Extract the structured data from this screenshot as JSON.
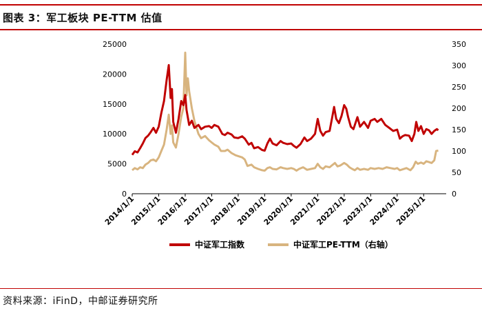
{
  "title": "图表 3：军工板块 PE-TTM 估值",
  "source": "资料来源：iFinD，中邮证券研究所",
  "colors": {
    "accent": "#c00000",
    "series1": "#c00000",
    "series2": "#d8b47f"
  },
  "chart_data": {
    "type": "line",
    "x_tick_labels": [
      "2014/1/1",
      "2015/1/1",
      "2016/1/1",
      "2017/1/1",
      "2018/1/1",
      "2019/1/1",
      "2020/1/1",
      "2021/1/1",
      "2022/1/1",
      "2023/1/1",
      "2024/1/1",
      "2025/1/1"
    ],
    "x_range": [
      2014.0,
      2025.85
    ],
    "y_left": {
      "ticks": [
        "0",
        "5000",
        "10000",
        "15000",
        "20000",
        "25000"
      ],
      "range": [
        0,
        25000
      ]
    },
    "y_right": {
      "ticks": [
        "0",
        "50",
        "100",
        "150",
        "200",
        "250",
        "300",
        "350"
      ],
      "range": [
        0,
        350
      ]
    },
    "legend_position": "bottom",
    "series": [
      {
        "name": "中证军工指数",
        "axis": "left",
        "points": [
          [
            2014.0,
            6500
          ],
          [
            2014.1,
            7100
          ],
          [
            2014.2,
            6900
          ],
          [
            2014.3,
            7600
          ],
          [
            2014.4,
            8400
          ],
          [
            2014.5,
            9300
          ],
          [
            2014.6,
            9700
          ],
          [
            2014.7,
            10300
          ],
          [
            2014.8,
            11000
          ],
          [
            2014.9,
            10200
          ],
          [
            2015.0,
            11200
          ],
          [
            2015.1,
            13500
          ],
          [
            2015.2,
            15500
          ],
          [
            2015.3,
            19000
          ],
          [
            2015.38,
            21500
          ],
          [
            2015.45,
            16000
          ],
          [
            2015.5,
            17500
          ],
          [
            2015.55,
            12000
          ],
          [
            2015.65,
            10200
          ],
          [
            2015.75,
            12500
          ],
          [
            2015.85,
            15500
          ],
          [
            2015.93,
            14800
          ],
          [
            2016.0,
            16500
          ],
          [
            2016.05,
            14000
          ],
          [
            2016.15,
            11500
          ],
          [
            2016.25,
            12200
          ],
          [
            2016.35,
            11000
          ],
          [
            2016.5,
            11500
          ],
          [
            2016.6,
            10800
          ],
          [
            2016.75,
            11200
          ],
          [
            2016.9,
            11300
          ],
          [
            2017.0,
            11000
          ],
          [
            2017.1,
            11500
          ],
          [
            2017.25,
            11200
          ],
          [
            2017.4,
            10000
          ],
          [
            2017.5,
            9800
          ],
          [
            2017.6,
            10200
          ],
          [
            2017.75,
            9900
          ],
          [
            2017.85,
            9400
          ],
          [
            2018.0,
            9300
          ],
          [
            2018.15,
            9600
          ],
          [
            2018.25,
            9200
          ],
          [
            2018.4,
            8200
          ],
          [
            2018.5,
            8500
          ],
          [
            2018.6,
            7600
          ],
          [
            2018.75,
            7800
          ],
          [
            2018.9,
            7300
          ],
          [
            2019.0,
            7200
          ],
          [
            2019.1,
            8400
          ],
          [
            2019.2,
            9200
          ],
          [
            2019.3,
            8400
          ],
          [
            2019.45,
            8100
          ],
          [
            2019.6,
            8800
          ],
          [
            2019.7,
            8500
          ],
          [
            2019.85,
            8300
          ],
          [
            2020.0,
            8400
          ],
          [
            2020.1,
            8000
          ],
          [
            2020.2,
            7700
          ],
          [
            2020.35,
            8300
          ],
          [
            2020.5,
            9400
          ],
          [
            2020.6,
            8800
          ],
          [
            2020.75,
            9200
          ],
          [
            2020.9,
            10000
          ],
          [
            2021.0,
            12500
          ],
          [
            2021.1,
            10500
          ],
          [
            2021.2,
            9700
          ],
          [
            2021.3,
            10300
          ],
          [
            2021.45,
            10500
          ],
          [
            2021.55,
            12800
          ],
          [
            2021.62,
            14500
          ],
          [
            2021.7,
            12500
          ],
          [
            2021.8,
            11800
          ],
          [
            2021.9,
            13000
          ],
          [
            2022.0,
            14800
          ],
          [
            2022.08,
            14200
          ],
          [
            2022.15,
            12800
          ],
          [
            2022.25,
            11200
          ],
          [
            2022.35,
            10800
          ],
          [
            2022.5,
            12800
          ],
          [
            2022.6,
            11200
          ],
          [
            2022.75,
            12000
          ],
          [
            2022.9,
            11000
          ],
          [
            2023.0,
            12200
          ],
          [
            2023.15,
            12500
          ],
          [
            2023.25,
            12000
          ],
          [
            2023.4,
            12500
          ],
          [
            2023.55,
            11500
          ],
          [
            2023.7,
            11000
          ],
          [
            2023.85,
            10500
          ],
          [
            2024.0,
            10700
          ],
          [
            2024.1,
            9200
          ],
          [
            2024.2,
            9600
          ],
          [
            2024.3,
            9800
          ],
          [
            2024.45,
            9700
          ],
          [
            2024.55,
            8800
          ],
          [
            2024.65,
            10000
          ],
          [
            2024.72,
            12000
          ],
          [
            2024.8,
            10500
          ],
          [
            2024.9,
            11300
          ],
          [
            2025.0,
            10000
          ],
          [
            2025.1,
            10800
          ],
          [
            2025.2,
            10600
          ],
          [
            2025.3,
            10000
          ],
          [
            2025.4,
            10500
          ],
          [
            2025.5,
            10800
          ],
          [
            2025.55,
            10600
          ]
        ]
      },
      {
        "name": "中证军工PE-TTM（右轴）",
        "axis": "right",
        "points": [
          [
            2014.0,
            55
          ],
          [
            2014.1,
            60
          ],
          [
            2014.2,
            57
          ],
          [
            2014.3,
            62
          ],
          [
            2014.4,
            60
          ],
          [
            2014.5,
            68
          ],
          [
            2014.6,
            72
          ],
          [
            2014.7,
            78
          ],
          [
            2014.8,
            80
          ],
          [
            2014.9,
            76
          ],
          [
            2015.0,
            85
          ],
          [
            2015.1,
            100
          ],
          [
            2015.2,
            115
          ],
          [
            2015.3,
            150
          ],
          [
            2015.38,
            185
          ],
          [
            2015.45,
            140
          ],
          [
            2015.5,
            160
          ],
          [
            2015.55,
            120
          ],
          [
            2015.65,
            108
          ],
          [
            2015.75,
            140
          ],
          [
            2015.85,
            180
          ],
          [
            2015.93,
            200
          ],
          [
            2016.0,
            330
          ],
          [
            2016.05,
            230
          ],
          [
            2016.1,
            270
          ],
          [
            2016.15,
            240
          ],
          [
            2016.25,
            200
          ],
          [
            2016.35,
            170
          ],
          [
            2016.5,
            140
          ],
          [
            2016.6,
            130
          ],
          [
            2016.75,
            135
          ],
          [
            2016.9,
            125
          ],
          [
            2017.0,
            120
          ],
          [
            2017.1,
            115
          ],
          [
            2017.25,
            110
          ],
          [
            2017.35,
            100
          ],
          [
            2017.5,
            100
          ],
          [
            2017.6,
            103
          ],
          [
            2017.75,
            95
          ],
          [
            2017.9,
            90
          ],
          [
            2018.0,
            88
          ],
          [
            2018.15,
            85
          ],
          [
            2018.25,
            80
          ],
          [
            2018.35,
            65
          ],
          [
            2018.5,
            68
          ],
          [
            2018.6,
            62
          ],
          [
            2018.75,
            58
          ],
          [
            2018.9,
            55
          ],
          [
            2019.0,
            54
          ],
          [
            2019.1,
            60
          ],
          [
            2019.2,
            62
          ],
          [
            2019.3,
            58
          ],
          [
            2019.45,
            57
          ],
          [
            2019.6,
            62
          ],
          [
            2019.7,
            60
          ],
          [
            2019.85,
            58
          ],
          [
            2020.0,
            60
          ],
          [
            2020.1,
            58
          ],
          [
            2020.2,
            54
          ],
          [
            2020.3,
            58
          ],
          [
            2020.45,
            62
          ],
          [
            2020.6,
            56
          ],
          [
            2020.75,
            58
          ],
          [
            2020.9,
            60
          ],
          [
            2021.0,
            70
          ],
          [
            2021.1,
            62
          ],
          [
            2021.2,
            58
          ],
          [
            2021.3,
            64
          ],
          [
            2021.45,
            62
          ],
          [
            2021.55,
            67
          ],
          [
            2021.65,
            72
          ],
          [
            2021.75,
            64
          ],
          [
            2021.85,
            66
          ],
          [
            2022.0,
            72
          ],
          [
            2022.1,
            68
          ],
          [
            2022.2,
            62
          ],
          [
            2022.3,
            58
          ],
          [
            2022.4,
            55
          ],
          [
            2022.5,
            60
          ],
          [
            2022.6,
            56
          ],
          [
            2022.75,
            58
          ],
          [
            2022.9,
            56
          ],
          [
            2023.0,
            60
          ],
          [
            2023.15,
            58
          ],
          [
            2023.3,
            60
          ],
          [
            2023.45,
            58
          ],
          [
            2023.6,
            62
          ],
          [
            2023.75,
            60
          ],
          [
            2023.9,
            58
          ],
          [
            2024.0,
            60
          ],
          [
            2024.1,
            55
          ],
          [
            2024.2,
            57
          ],
          [
            2024.35,
            60
          ],
          [
            2024.5,
            55
          ],
          [
            2024.6,
            62
          ],
          [
            2024.7,
            75
          ],
          [
            2024.78,
            70
          ],
          [
            2024.9,
            73
          ],
          [
            2025.0,
            70
          ],
          [
            2025.1,
            76
          ],
          [
            2025.2,
            74
          ],
          [
            2025.3,
            72
          ],
          [
            2025.4,
            78
          ],
          [
            2025.47,
            100
          ],
          [
            2025.55,
            101
          ]
        ]
      }
    ]
  }
}
